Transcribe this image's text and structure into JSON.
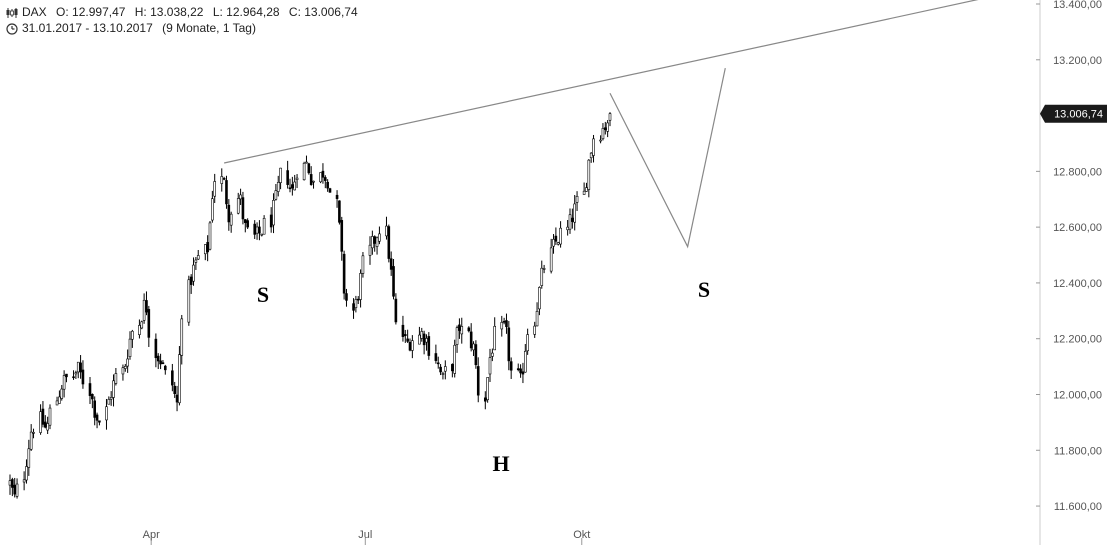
{
  "header": {
    "symbol": "DAX",
    "open": "O: 12.997,47",
    "high": "H: 13.038,22",
    "low": "L: 12.964,28",
    "close": "C: 13.006,74",
    "date_range": "31.01.2017 - 13.10.2017",
    "period": "(9 Monate, 1 Tag)"
  },
  "icons": {
    "chart": "candlestick-chart-icon",
    "clock": "clock-icon"
  },
  "colors": {
    "candle": "#000000",
    "line": "#888888",
    "price_tag_bg": "#1a1a1a"
  },
  "chart_data": {
    "type": "candlestick",
    "title": "",
    "xlabel": "",
    "ylabel": "",
    "x_range": [
      "2017-01-31",
      "2017-10-13"
    ],
    "ylim": [
      11550,
      13400
    ],
    "y_axis_side": "right",
    "y_ticks": [
      "13.400,00",
      "13.200,00",
      "12.800,00",
      "12.600,00",
      "12.400,00",
      "12.200,00",
      "12.000,00",
      "11.800,00",
      "11.600,00"
    ],
    "x_ticks": [
      "Apr",
      "Jul",
      "Okt"
    ],
    "last_price_label": "13.006,74",
    "grid": false,
    "close_series": [
      11680,
      11620,
      11750,
      11870,
      11910,
      11870,
      11980,
      12040,
      12060,
      12090,
      12050,
      11960,
      11900,
      11980,
      12050,
      12100,
      12200,
      12270,
      12340,
      12150,
      12120,
      12050,
      11960,
      12350,
      12440,
      12490,
      12530,
      12780,
      12760,
      12640,
      12720,
      12600,
      12560,
      12580,
      12620,
      12700,
      12800,
      12720,
      12810,
      12830,
      12760,
      12800,
      12770,
      12640,
      12380,
      12290,
      12390,
      12510,
      12560,
      12610,
      12450,
      12230,
      12180,
      12200,
      12220,
      12190,
      12110,
      12050,
      12120,
      12250,
      12210,
      12160,
      11960,
      12130,
      12220,
      12240,
      12080,
      12040,
      12210,
      12310,
      12430,
      12520,
      12560,
      12590,
      12650,
      12700,
      12840,
      12940,
      12960,
      13006.74
    ],
    "annotations": [
      {
        "type": "trendline",
        "label": "",
        "points": [
          [
            "2017-05-02",
            12830
          ],
          [
            "2017-10-13",
            13130
          ]
        ],
        "extends": "right"
      },
      {
        "type": "projection",
        "label": "",
        "points": [
          [
            "2017-10-13",
            13080
          ],
          [
            "2017-11-15",
            12530
          ],
          [
            "2017-12-01",
            13170
          ]
        ]
      },
      {
        "type": "text",
        "label": "S"
      },
      {
        "type": "text",
        "label": "H"
      },
      {
        "type": "text",
        "label": "S"
      }
    ]
  }
}
